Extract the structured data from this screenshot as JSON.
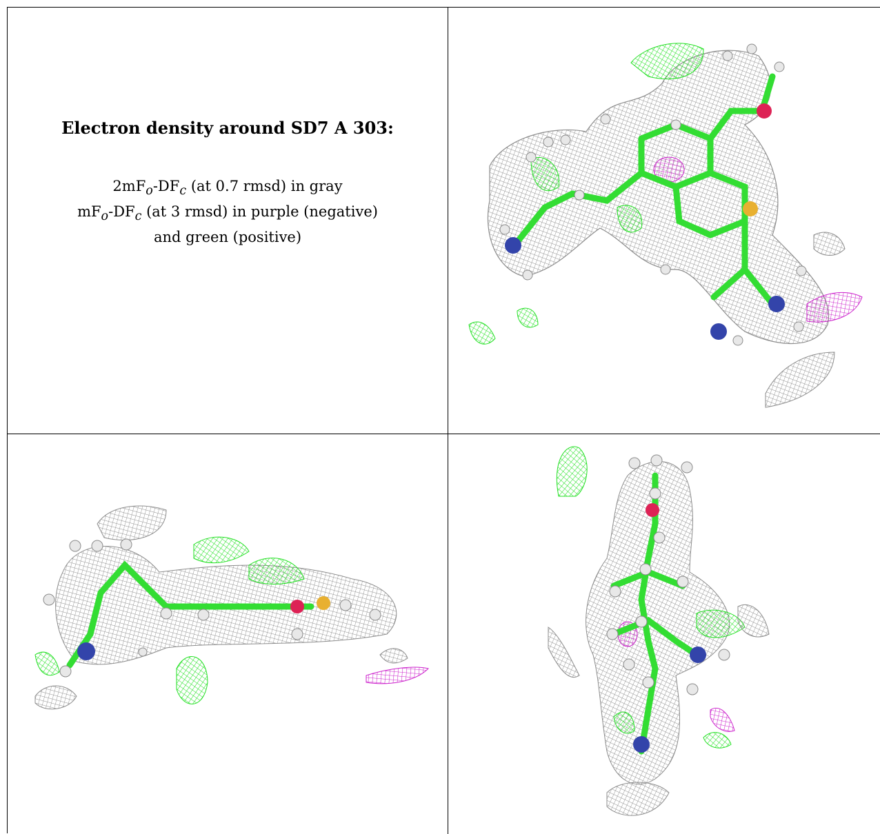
{
  "caption": {
    "title": "Electron density around SD7 A 303:",
    "line1_pre": "2mF",
    "line1_sub1": "o",
    "line1_mid": "-DF",
    "line1_sub2": "c",
    "line1_post": " (at 0.7 rmsd) in gray",
    "line2_pre": "mF",
    "line2_sub1": "o",
    "line2_mid": "-DF",
    "line2_sub2": "c",
    "line2_post": " (at 3 rmsd) in purple (negative)",
    "line3": "and green (positive)"
  },
  "colors": {
    "map_2fofc": "#8c8c8c",
    "map_fofc_positive": "#22e022",
    "map_fofc_negative": "#cc22cc",
    "carbon": "#33dd33",
    "nitrogen": "#3344aa",
    "oxygen": "#dd2255",
    "sulfur": "#e8b030",
    "hydrogen": "#e8e8e8"
  },
  "views": [
    {
      "name": "view-top"
    },
    {
      "name": "view-side"
    },
    {
      "name": "view-end"
    }
  ]
}
